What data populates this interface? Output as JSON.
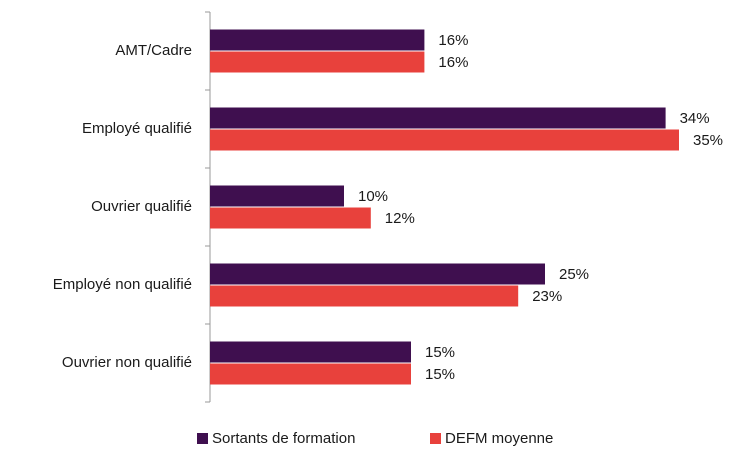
{
  "chart_data": {
    "type": "bar",
    "orientation": "horizontal",
    "categories": [
      "AMT/Cadre",
      "Employé qualifié",
      "Ouvrier qualifié",
      "Employé non qualifié",
      "Ouvrier non qualifié"
    ],
    "series": [
      {
        "name": "Sortants de formation",
        "color": "#3f0f4f",
        "values": [
          16,
          34,
          10,
          25,
          15
        ],
        "value_labels": [
          "16%",
          "34%",
          "10%",
          "25%",
          "15%"
        ]
      },
      {
        "name": "DEFM moyenne",
        "color": "#e8413c",
        "values": [
          16,
          35,
          12,
          23,
          15
        ],
        "value_labels": [
          "16%",
          "35%",
          "12%",
          "23%",
          "15%"
        ]
      }
    ],
    "legend": "bottom"
  }
}
